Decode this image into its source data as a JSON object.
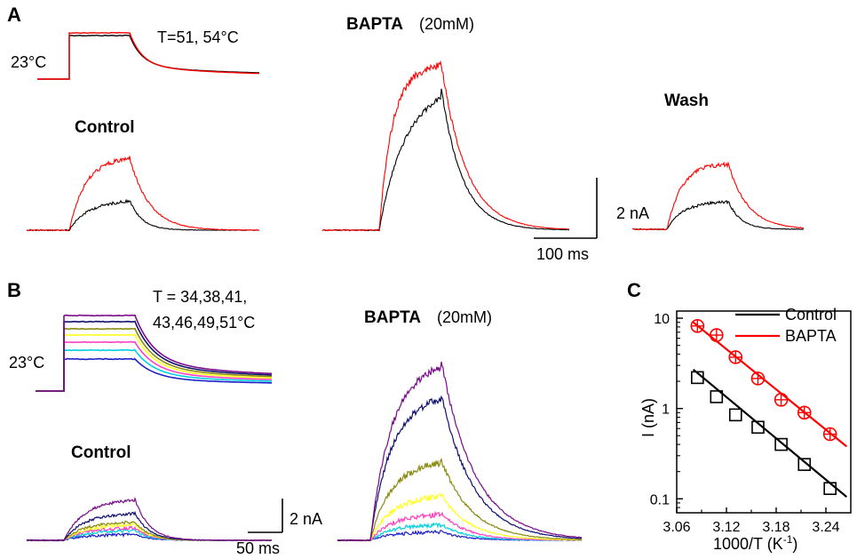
{
  "panel_a": {
    "letter": "A",
    "temp_protocol": {
      "baseline_label": "23°C",
      "steps_label": "T=51, 54°C"
    },
    "condition_labels": {
      "control": "Control",
      "bapta": "BAPTA",
      "bapta_conc": "(20mM)",
      "wash": "Wash"
    },
    "scale_bar": {
      "current": "2 nA",
      "time": "100 ms"
    },
    "colors": {
      "low_temp": "#000000",
      "high_temp": "#ff0000"
    }
  },
  "panel_b": {
    "letter": "B",
    "temp_protocol": {
      "steps_label_line1": "T = 34,38,41,",
      "steps_label_line2": "43,46,49,51°C",
      "baseline_label": "23°C"
    },
    "condition_labels": {
      "control": "Control",
      "bapta": "BAPTA",
      "bapta_conc": "(20mM)"
    },
    "scale_bar": {
      "current": "2 nA",
      "time": "50 ms"
    },
    "trace_colors": [
      "#1f1fc8",
      "#00d0e0",
      "#ff40c0",
      "#ffff20",
      "#8a8a10",
      "#10106e",
      "#7a0a8a"
    ]
  },
  "panel_c": {
    "letter": "C",
    "chart_data": {
      "type": "scatter",
      "xlabel": "1000/T (K-1)",
      "xlabel_main": "1000/T (K",
      "xlabel_sup": "-1",
      "xlabel_close": ")",
      "ylabel": "I (nA)",
      "yscale": "log",
      "xlim": [
        3.06,
        3.27
      ],
      "ylim": [
        0.07,
        12
      ],
      "xticks": [
        3.06,
        3.12,
        3.18,
        3.24
      ],
      "xtick_labels": [
        "3.06",
        "3.12",
        "3.18",
        "3.24"
      ],
      "yticks": [
        0.1,
        1,
        10
      ],
      "ytick_labels": [
        "0.1",
        "1",
        "10"
      ],
      "legend_position": "top-right",
      "series": [
        {
          "name": "Control",
          "color": "#000000",
          "marker": "square",
          "x": [
            3.085,
            3.108,
            3.131,
            3.158,
            3.186,
            3.214,
            3.245
          ],
          "y": [
            2.2,
            1.35,
            0.85,
            0.62,
            0.4,
            0.24,
            0.13
          ],
          "fit": {
            "x": [
              3.08,
              3.265
            ],
            "y": [
              2.7,
              0.105
            ]
          }
        },
        {
          "name": "BAPTA",
          "color": "#ff0000",
          "marker": "circle-cross",
          "x": [
            3.085,
            3.108,
            3.131,
            3.158,
            3.186,
            3.214,
            3.245
          ],
          "y": [
            8.2,
            6.5,
            3.7,
            2.15,
            1.25,
            0.9,
            0.52
          ],
          "fit": {
            "x": [
              3.08,
              3.265
            ],
            "y": [
              9.0,
              0.38
            ]
          }
        }
      ]
    }
  }
}
